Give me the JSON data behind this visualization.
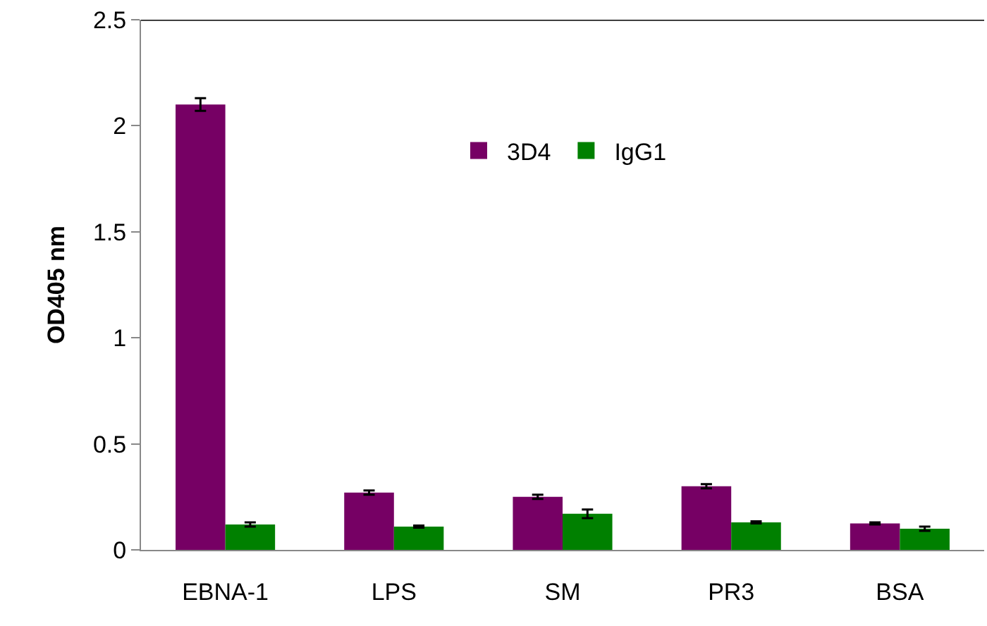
{
  "chart_data": {
    "type": "bar",
    "ylabel": "OD405 nm",
    "categories": [
      "EBNA-1",
      "LPS",
      "SM",
      "PR3",
      "BSA"
    ],
    "series": [
      {
        "name": "3D4",
        "color": "#760064",
        "values": [
          2.1,
          0.27,
          0.25,
          0.3,
          0.125
        ],
        "errors": [
          0.03,
          0.01,
          0.01,
          0.01,
          0.005
        ]
      },
      {
        "name": "IgG1",
        "color": "#008000",
        "values": [
          0.12,
          0.11,
          0.17,
          0.13,
          0.1
        ],
        "errors": [
          0.01,
          0.005,
          0.02,
          0.005,
          0.01
        ]
      }
    ],
    "ylim": [
      0,
      2.5
    ],
    "yticks": [
      0,
      0.5,
      1,
      1.5,
      2,
      2.5
    ],
    "legend": "top center"
  }
}
